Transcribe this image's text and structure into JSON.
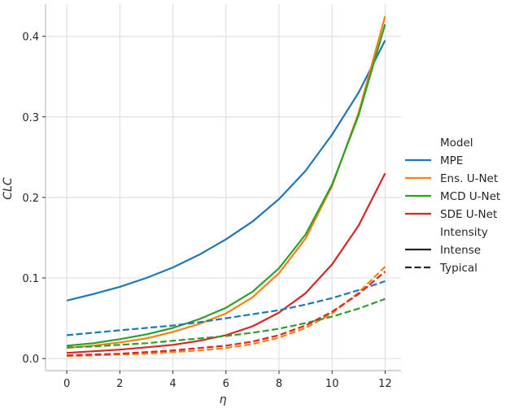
{
  "chart_data": {
    "type": "line",
    "xlabel": "η",
    "ylabel": "CLC",
    "xlim": [
      -0.8,
      12.6
    ],
    "ylim": [
      -0.015,
      0.44
    ],
    "xticks": [
      0,
      2,
      4,
      6,
      8,
      10,
      12
    ],
    "xtick_labels": [
      "0",
      "2",
      "4",
      "6",
      "8",
      "10",
      "12"
    ],
    "yticks": [
      0.0,
      0.1,
      0.2,
      0.3,
      0.4
    ],
    "ytick_labels": [
      "0.0",
      "0.1",
      "0.2",
      "0.3",
      "0.4"
    ],
    "grid": true,
    "legend_placement": "right",
    "legend": {
      "title_model": "Model",
      "title_intensity": "Intensity",
      "models": [
        {
          "name": "MPE",
          "color": "#1f77b4"
        },
        {
          "name": "Ens. U-Net",
          "color": "#ff7f0e"
        },
        {
          "name": "MCD U-Net",
          "color": "#2ca02c"
        },
        {
          "name": "SDE U-Net",
          "color": "#d62728"
        }
      ],
      "styles": [
        {
          "name": "Intense",
          "dash": "solid"
        },
        {
          "name": "Typical",
          "dash": "dashed"
        }
      ]
    },
    "x": [
      0,
      1,
      2,
      3,
      4,
      5,
      6,
      7,
      8,
      9,
      10,
      11,
      12
    ],
    "series": [
      {
        "name": "MPE",
        "intensity": "Intense",
        "color": "#1f77b4",
        "dash": "solid",
        "values": [
          0.072,
          0.08,
          0.089,
          0.1,
          0.113,
          0.129,
          0.148,
          0.17,
          0.198,
          0.233,
          0.278,
          0.33,
          0.395
        ]
      },
      {
        "name": "Ens. U-Net",
        "intensity": "Intense",
        "color": "#ff7f0e",
        "dash": "solid",
        "values": [
          0.013,
          0.016,
          0.02,
          0.025,
          0.033,
          0.043,
          0.056,
          0.076,
          0.106,
          0.149,
          0.214,
          0.305,
          0.425
        ]
      },
      {
        "name": "MCD U-Net",
        "intensity": "Intense",
        "color": "#2ca02c",
        "dash": "solid",
        "values": [
          0.016,
          0.019,
          0.024,
          0.03,
          0.038,
          0.049,
          0.063,
          0.083,
          0.112,
          0.154,
          0.216,
          0.302,
          0.415
        ]
      },
      {
        "name": "SDE U-Net",
        "intensity": "Intense",
        "color": "#d62728",
        "dash": "solid",
        "values": [
          0.007,
          0.009,
          0.011,
          0.014,
          0.017,
          0.022,
          0.029,
          0.04,
          0.057,
          0.081,
          0.117,
          0.165,
          0.23
        ]
      },
      {
        "name": "MPE",
        "intensity": "Typical",
        "color": "#1f77b4",
        "dash": "dashed",
        "values": [
          0.029,
          0.032,
          0.035,
          0.038,
          0.041,
          0.045,
          0.05,
          0.055,
          0.06,
          0.067,
          0.075,
          0.085,
          0.096
        ]
      },
      {
        "name": "Ens. U-Net",
        "intensity": "Typical",
        "color": "#ff7f0e",
        "dash": "dashed",
        "values": [
          0.003,
          0.004,
          0.005,
          0.006,
          0.008,
          0.01,
          0.013,
          0.018,
          0.026,
          0.038,
          0.056,
          0.082,
          0.114
        ]
      },
      {
        "name": "MCD U-Net",
        "intensity": "Typical",
        "color": "#2ca02c",
        "dash": "dashed",
        "values": [
          0.014,
          0.015,
          0.017,
          0.019,
          0.022,
          0.025,
          0.028,
          0.032,
          0.037,
          0.044,
          0.052,
          0.062,
          0.074
        ]
      },
      {
        "name": "SDE U-Net",
        "intensity": "Typical",
        "color": "#d62728",
        "dash": "dashed",
        "values": [
          0.004,
          0.005,
          0.006,
          0.008,
          0.01,
          0.013,
          0.016,
          0.021,
          0.029,
          0.041,
          0.058,
          0.08,
          0.108
        ]
      }
    ]
  }
}
